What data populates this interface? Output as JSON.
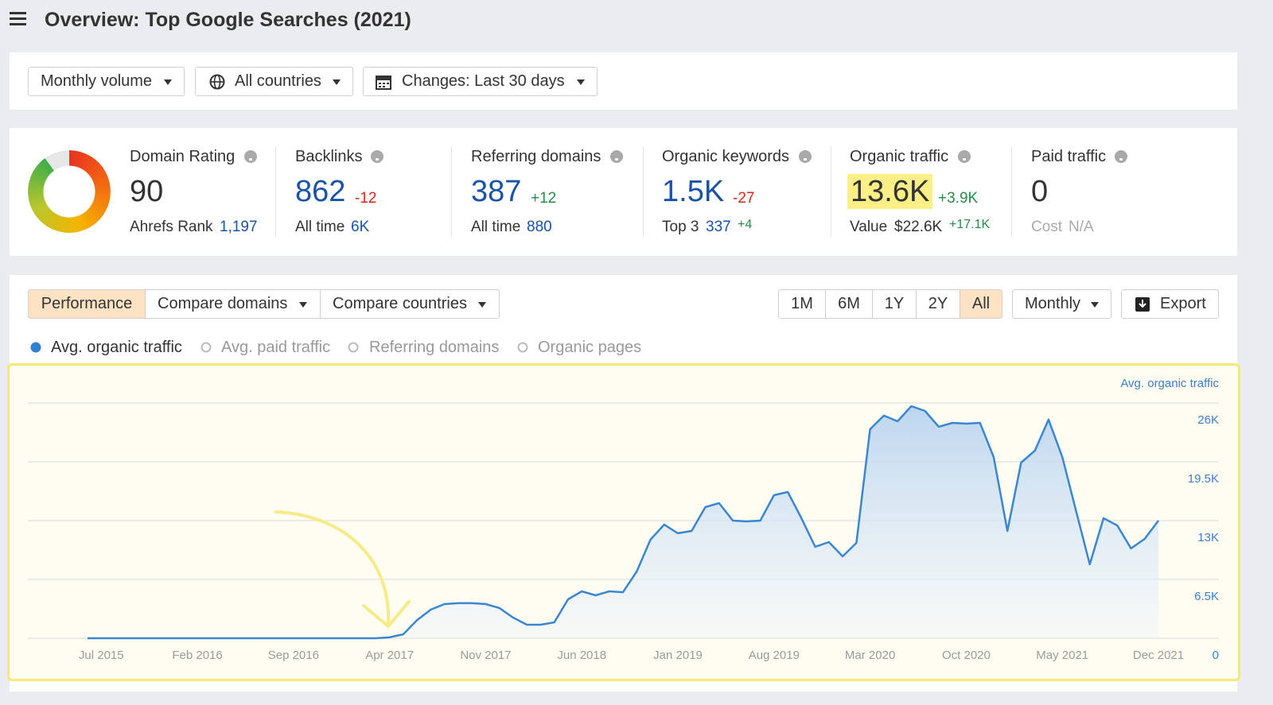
{
  "header": {
    "title": "Overview: Top Google Searches (2021)"
  },
  "filters": [
    "Monthly volume",
    "All countries",
    "Changes: Last 30 days"
  ],
  "metrics": [
    {
      "label": "Domain Rating",
      "value": 90,
      "sub_label": "Ahrefs Rank",
      "sub_value": "1,197"
    },
    {
      "label": "Backlinks",
      "value": 862,
      "change": "-12",
      "sub_label": "All time",
      "sub_value": "6K"
    },
    {
      "label": "Referring domains",
      "value": 387,
      "change": "+12",
      "sub_label": "All time",
      "sub_value": "880"
    },
    {
      "label": "Organic keywords",
      "value": "1.5K",
      "change": "-27",
      "sub_label": "Top 3",
      "sub_value": "337",
      "sub_change": "+4"
    },
    {
      "label": "Organic traffic",
      "value": "13.6K",
      "change": "+3.9K",
      "sub_label": "Value",
      "sub_value": "$22.6K",
      "sub_change": "+17.1K"
    },
    {
      "label": "Paid traffic",
      "value": 0,
      "sub_label": "Cost",
      "sub_value": "N/A"
    }
  ],
  "tabs": [
    "Performance",
    "Compare domains",
    "Compare countries"
  ],
  "ranges": [
    "1M",
    "6M",
    "1Y",
    "2Y",
    "All"
  ],
  "interval": "Monthly",
  "export": "Export",
  "legend": [
    "Avg. paid traffic",
    "Referring domains",
    "Organic pages"
  ],
  "chart_data": {
    "type": "line",
    "y_axis_label": "Avg. organic traffic",
    "categories": [
      null,
      "Jul 2015",
      null,
      null,
      null,
      null,
      null,
      null,
      "Feb 2016",
      null,
      null,
      null,
      null,
      null,
      null,
      "Sep 2016",
      null,
      null,
      null,
      null,
      null,
      null,
      "Apr 2017",
      null,
      null,
      null,
      null,
      null,
      null,
      "Nov 2017",
      null,
      null,
      null,
      null,
      null,
      null,
      "Jun 2018",
      null,
      null,
      null,
      null,
      null,
      null,
      "Jan 2019",
      null,
      null,
      null,
      null,
      null,
      null,
      "Aug 2019",
      null,
      null,
      null,
      null,
      null,
      null,
      "Mar 2020",
      null,
      null,
      null,
      null,
      null,
      null,
      "Oct 2020",
      null,
      null,
      null,
      null,
      null,
      null,
      "May 2021",
      null,
      null,
      null,
      null,
      null,
      null,
      "Dec 2021"
    ],
    "series": [
      {
        "name": "Avg. organic traffic",
        "color": "#3a86d1",
        "values": [
          0,
          0,
          0,
          0,
          0,
          0,
          0,
          0,
          0,
          0,
          0,
          0,
          0,
          0,
          0,
          0,
          0,
          0,
          0,
          0,
          0,
          0,
          100,
          440,
          2000,
          3160,
          3780,
          3870,
          3870,
          3780,
          3340,
          2280,
          1490,
          1490,
          1760,
          4300,
          5180,
          4740,
          5180,
          5090,
          7380,
          10890,
          12560,
          11600,
          11860,
          14490,
          14930,
          13000,
          12910,
          13000,
          15810,
          16160,
          13260,
          10100,
          10630,
          9050,
          10540,
          23100,
          24600,
          23980,
          25650,
          25120,
          23370,
          23800,
          23720,
          23800,
          20030,
          11860,
          19410,
          20730,
          24160,
          20030,
          14050,
          8170,
          13260,
          12470,
          9930,
          10980,
          13000
        ]
      }
    ],
    "ylim": [
      0,
      26000
    ],
    "yticks": [
      0,
      {
        "value": 6500,
        "label": "6.5K"
      },
      {
        "value": 13000,
        "label": "13K"
      },
      {
        "value": 19500,
        "label": "19.5K"
      },
      {
        "value": 26000,
        "label": "26K"
      }
    ],
    "grid": true
  }
}
